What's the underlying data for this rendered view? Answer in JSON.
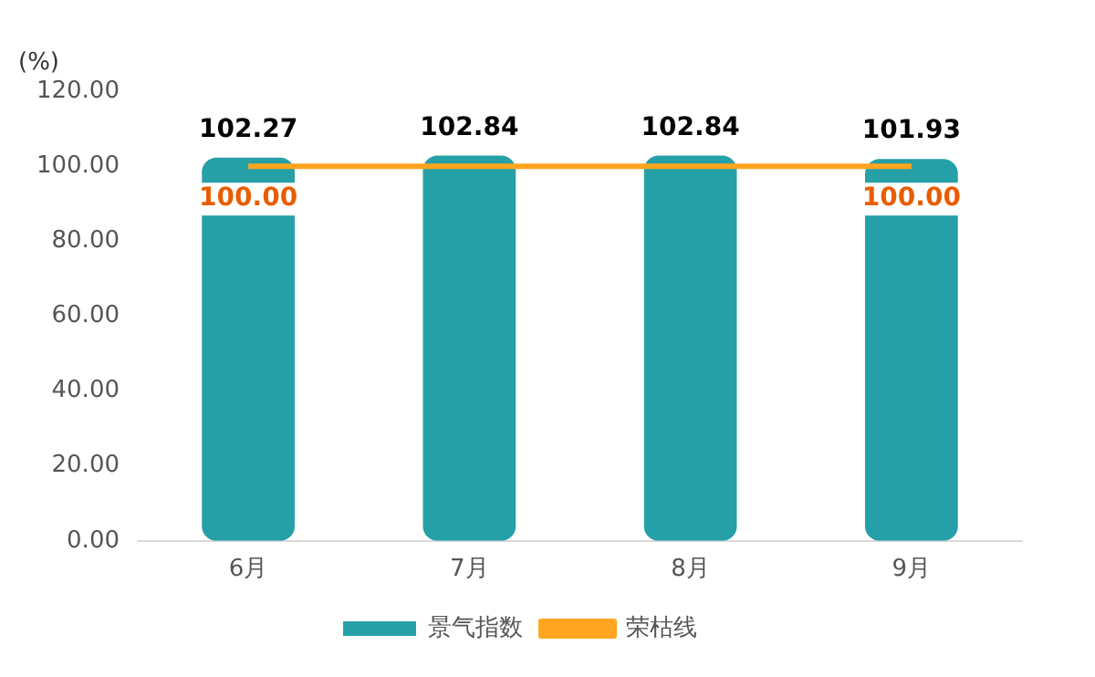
{
  "chart_data": {
    "type": "bar",
    "ylabel": "(%)",
    "categories": [
      "6月",
      "7月",
      "8月",
      "9月"
    ],
    "series": [
      {
        "name": "景气指数",
        "color": "#26a0a7",
        "values": [
          102.27,
          102.84,
          102.84,
          101.93
        ],
        "value_labels": [
          "102.27",
          "102.84",
          "102.84",
          "101.93"
        ]
      },
      {
        "name": "荣枯线",
        "type": "line",
        "color": "#ffa51f",
        "values": [
          100,
          100,
          100,
          100
        ],
        "value_labels": [
          "100.00",
          null,
          null,
          "100.00"
        ]
      }
    ],
    "ylim": [
      0,
      120
    ],
    "yticks": [
      {
        "value": 0,
        "label": "0.00"
      },
      {
        "value": 20,
        "label": "20.00"
      },
      {
        "value": 40,
        "label": "40.00"
      },
      {
        "value": 60,
        "label": "60.00"
      },
      {
        "value": 80,
        "label": "80.00"
      },
      {
        "value": 100,
        "label": "100.00"
      },
      {
        "value": 120,
        "label": "120.00"
      }
    ],
    "grid": false,
    "legend": "bottom",
    "marker": "none"
  }
}
